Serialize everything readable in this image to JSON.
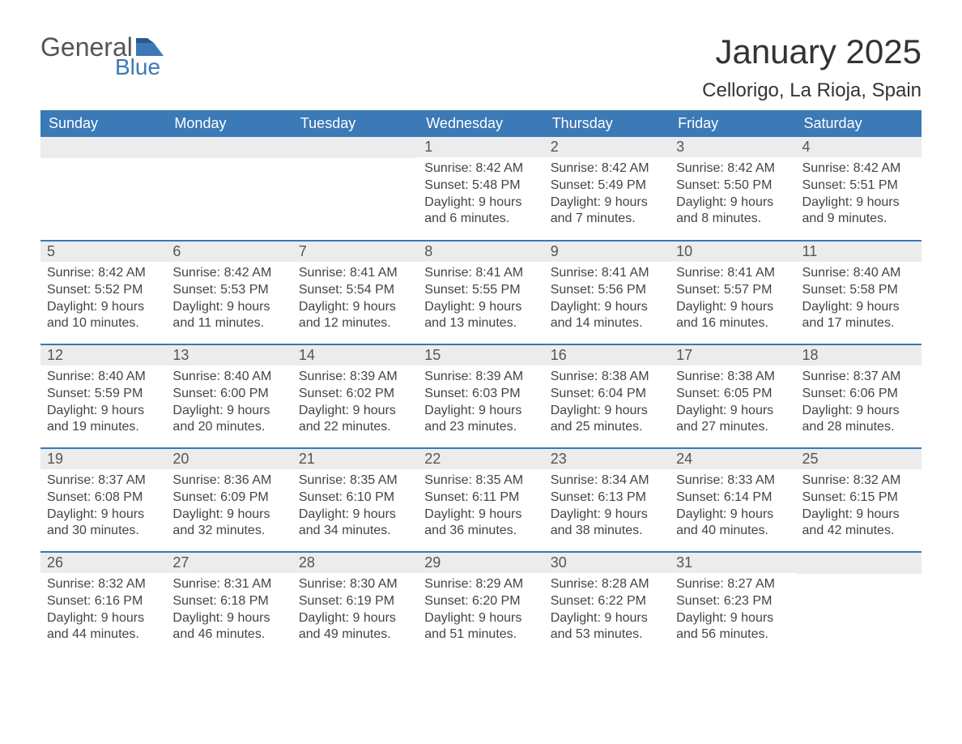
{
  "logo": {
    "text1": "General",
    "text2": "Blue"
  },
  "title": "January 2025",
  "location": "Cellorigo, La Rioja, Spain",
  "colors": {
    "header_bg": "#3b79b7",
    "header_text": "#ffffff",
    "daynum_bg": "#ececec",
    "body_text": "#444444",
    "row_border": "#3b79b7",
    "logo_gray": "#555555",
    "logo_blue": "#3b79b7"
  },
  "day_headers": [
    "Sunday",
    "Monday",
    "Tuesday",
    "Wednesday",
    "Thursday",
    "Friday",
    "Saturday"
  ],
  "weeks": [
    [
      null,
      null,
      null,
      {
        "n": "1",
        "sunrise": "Sunrise: 8:42 AM",
        "sunset": "Sunset: 5:48 PM",
        "d1": "Daylight: 9 hours",
        "d2": "and 6 minutes."
      },
      {
        "n": "2",
        "sunrise": "Sunrise: 8:42 AM",
        "sunset": "Sunset: 5:49 PM",
        "d1": "Daylight: 9 hours",
        "d2": "and 7 minutes."
      },
      {
        "n": "3",
        "sunrise": "Sunrise: 8:42 AM",
        "sunset": "Sunset: 5:50 PM",
        "d1": "Daylight: 9 hours",
        "d2": "and 8 minutes."
      },
      {
        "n": "4",
        "sunrise": "Sunrise: 8:42 AM",
        "sunset": "Sunset: 5:51 PM",
        "d1": "Daylight: 9 hours",
        "d2": "and 9 minutes."
      }
    ],
    [
      {
        "n": "5",
        "sunrise": "Sunrise: 8:42 AM",
        "sunset": "Sunset: 5:52 PM",
        "d1": "Daylight: 9 hours",
        "d2": "and 10 minutes."
      },
      {
        "n": "6",
        "sunrise": "Sunrise: 8:42 AM",
        "sunset": "Sunset: 5:53 PM",
        "d1": "Daylight: 9 hours",
        "d2": "and 11 minutes."
      },
      {
        "n": "7",
        "sunrise": "Sunrise: 8:41 AM",
        "sunset": "Sunset: 5:54 PM",
        "d1": "Daylight: 9 hours",
        "d2": "and 12 minutes."
      },
      {
        "n": "8",
        "sunrise": "Sunrise: 8:41 AM",
        "sunset": "Sunset: 5:55 PM",
        "d1": "Daylight: 9 hours",
        "d2": "and 13 minutes."
      },
      {
        "n": "9",
        "sunrise": "Sunrise: 8:41 AM",
        "sunset": "Sunset: 5:56 PM",
        "d1": "Daylight: 9 hours",
        "d2": "and 14 minutes."
      },
      {
        "n": "10",
        "sunrise": "Sunrise: 8:41 AM",
        "sunset": "Sunset: 5:57 PM",
        "d1": "Daylight: 9 hours",
        "d2": "and 16 minutes."
      },
      {
        "n": "11",
        "sunrise": "Sunrise: 8:40 AM",
        "sunset": "Sunset: 5:58 PM",
        "d1": "Daylight: 9 hours",
        "d2": "and 17 minutes."
      }
    ],
    [
      {
        "n": "12",
        "sunrise": "Sunrise: 8:40 AM",
        "sunset": "Sunset: 5:59 PM",
        "d1": "Daylight: 9 hours",
        "d2": "and 19 minutes."
      },
      {
        "n": "13",
        "sunrise": "Sunrise: 8:40 AM",
        "sunset": "Sunset: 6:00 PM",
        "d1": "Daylight: 9 hours",
        "d2": "and 20 minutes."
      },
      {
        "n": "14",
        "sunrise": "Sunrise: 8:39 AM",
        "sunset": "Sunset: 6:02 PM",
        "d1": "Daylight: 9 hours",
        "d2": "and 22 minutes."
      },
      {
        "n": "15",
        "sunrise": "Sunrise: 8:39 AM",
        "sunset": "Sunset: 6:03 PM",
        "d1": "Daylight: 9 hours",
        "d2": "and 23 minutes."
      },
      {
        "n": "16",
        "sunrise": "Sunrise: 8:38 AM",
        "sunset": "Sunset: 6:04 PM",
        "d1": "Daylight: 9 hours",
        "d2": "and 25 minutes."
      },
      {
        "n": "17",
        "sunrise": "Sunrise: 8:38 AM",
        "sunset": "Sunset: 6:05 PM",
        "d1": "Daylight: 9 hours",
        "d2": "and 27 minutes."
      },
      {
        "n": "18",
        "sunrise": "Sunrise: 8:37 AM",
        "sunset": "Sunset: 6:06 PM",
        "d1": "Daylight: 9 hours",
        "d2": "and 28 minutes."
      }
    ],
    [
      {
        "n": "19",
        "sunrise": "Sunrise: 8:37 AM",
        "sunset": "Sunset: 6:08 PM",
        "d1": "Daylight: 9 hours",
        "d2": "and 30 minutes."
      },
      {
        "n": "20",
        "sunrise": "Sunrise: 8:36 AM",
        "sunset": "Sunset: 6:09 PM",
        "d1": "Daylight: 9 hours",
        "d2": "and 32 minutes."
      },
      {
        "n": "21",
        "sunrise": "Sunrise: 8:35 AM",
        "sunset": "Sunset: 6:10 PM",
        "d1": "Daylight: 9 hours",
        "d2": "and 34 minutes."
      },
      {
        "n": "22",
        "sunrise": "Sunrise: 8:35 AM",
        "sunset": "Sunset: 6:11 PM",
        "d1": "Daylight: 9 hours",
        "d2": "and 36 minutes."
      },
      {
        "n": "23",
        "sunrise": "Sunrise: 8:34 AM",
        "sunset": "Sunset: 6:13 PM",
        "d1": "Daylight: 9 hours",
        "d2": "and 38 minutes."
      },
      {
        "n": "24",
        "sunrise": "Sunrise: 8:33 AM",
        "sunset": "Sunset: 6:14 PM",
        "d1": "Daylight: 9 hours",
        "d2": "and 40 minutes."
      },
      {
        "n": "25",
        "sunrise": "Sunrise: 8:32 AM",
        "sunset": "Sunset: 6:15 PM",
        "d1": "Daylight: 9 hours",
        "d2": "and 42 minutes."
      }
    ],
    [
      {
        "n": "26",
        "sunrise": "Sunrise: 8:32 AM",
        "sunset": "Sunset: 6:16 PM",
        "d1": "Daylight: 9 hours",
        "d2": "and 44 minutes."
      },
      {
        "n": "27",
        "sunrise": "Sunrise: 8:31 AM",
        "sunset": "Sunset: 6:18 PM",
        "d1": "Daylight: 9 hours",
        "d2": "and 46 minutes."
      },
      {
        "n": "28",
        "sunrise": "Sunrise: 8:30 AM",
        "sunset": "Sunset: 6:19 PM",
        "d1": "Daylight: 9 hours",
        "d2": "and 49 minutes."
      },
      {
        "n": "29",
        "sunrise": "Sunrise: 8:29 AM",
        "sunset": "Sunset: 6:20 PM",
        "d1": "Daylight: 9 hours",
        "d2": "and 51 minutes."
      },
      {
        "n": "30",
        "sunrise": "Sunrise: 8:28 AM",
        "sunset": "Sunset: 6:22 PM",
        "d1": "Daylight: 9 hours",
        "d2": "and 53 minutes."
      },
      {
        "n": "31",
        "sunrise": "Sunrise: 8:27 AM",
        "sunset": "Sunset: 6:23 PM",
        "d1": "Daylight: 9 hours",
        "d2": "and 56 minutes."
      },
      null
    ]
  ]
}
